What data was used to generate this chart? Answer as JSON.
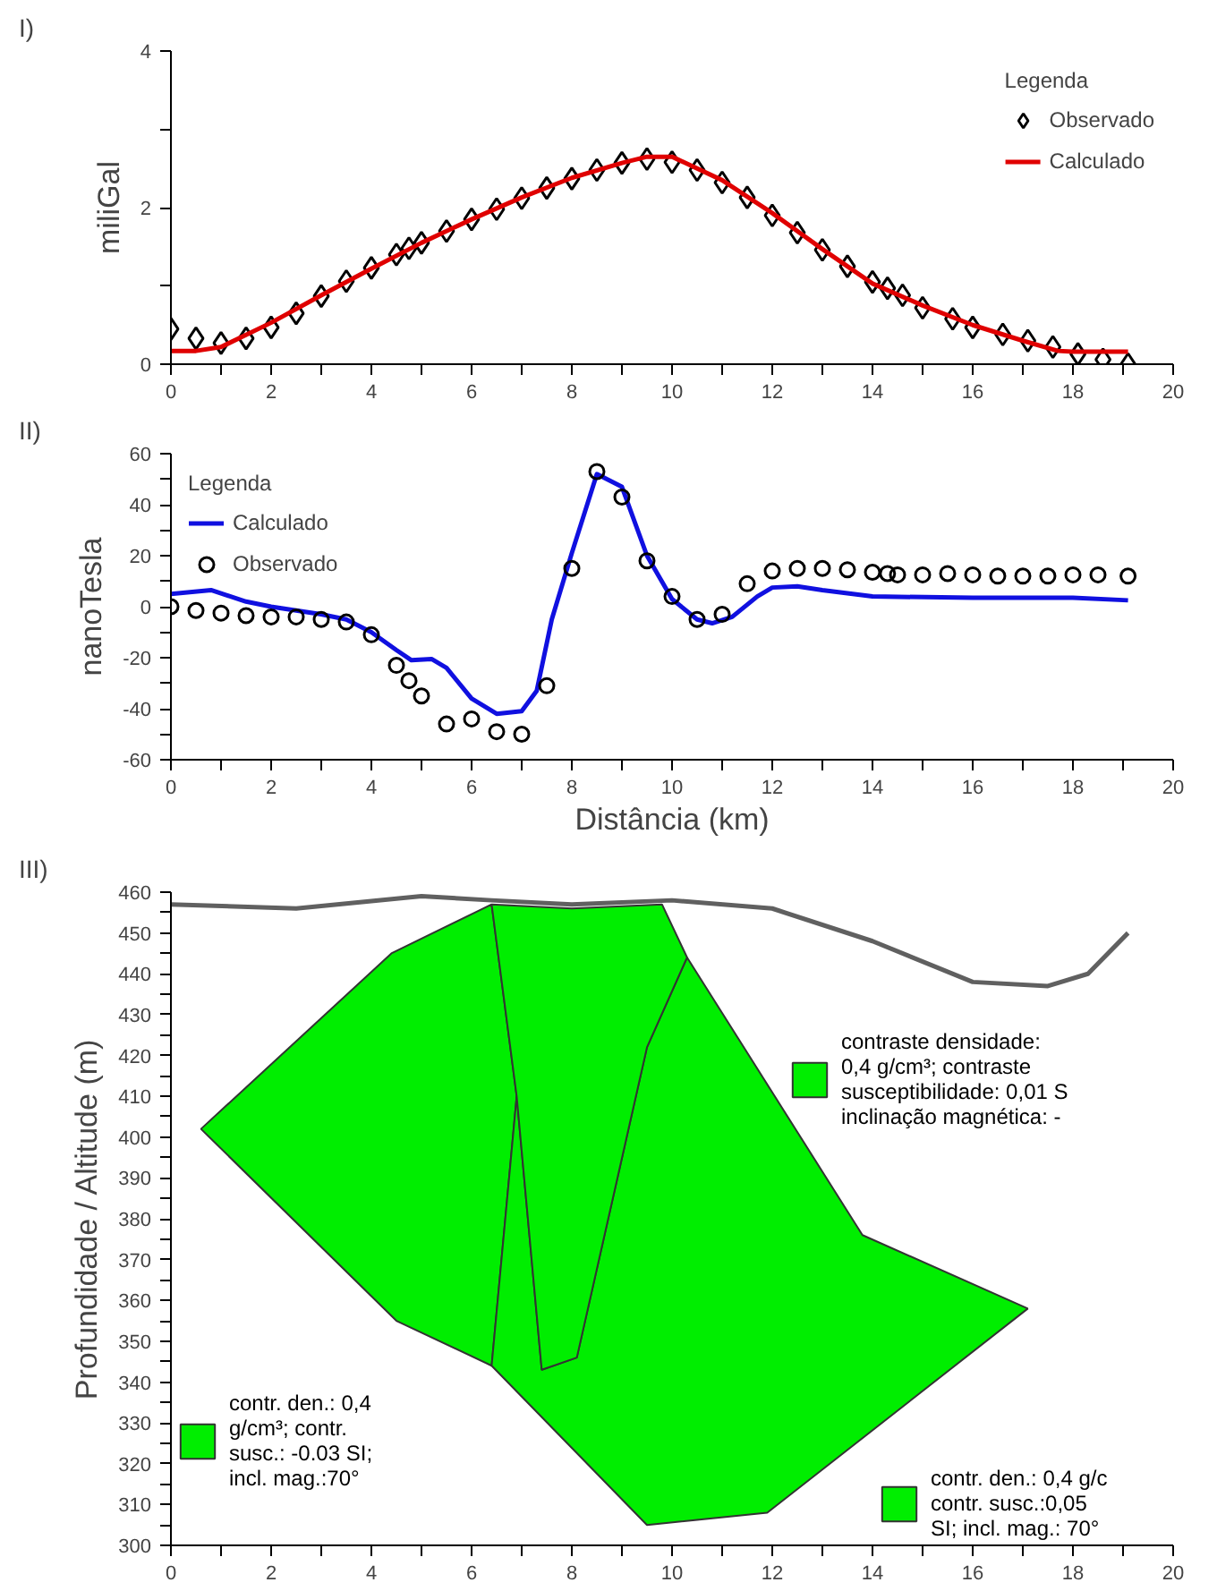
{
  "chart_data": [
    {
      "type": "line",
      "title": "I)",
      "ylabel": "miliGal",
      "legend_title": "Legenda",
      "legend": "top right",
      "xlim": [
        0,
        20
      ],
      "xticks": [
        0,
        {
          "value": 1,
          "label": null
        },
        2,
        {
          "value": 3,
          "label": null
        },
        4,
        {
          "value": 5,
          "label": null
        },
        6,
        {
          "value": 7,
          "label": null
        },
        8,
        {
          "value": 9,
          "label": null
        },
        10,
        {
          "value": 11,
          "label": null
        },
        12,
        {
          "value": 13,
          "label": null
        },
        14,
        {
          "value": 15,
          "label": null
        },
        16,
        {
          "value": 17,
          "label": null
        },
        18,
        {
          "value": 19,
          "label": null
        },
        20
      ],
      "ylim": [
        0,
        4
      ],
      "yticks": [
        0,
        {
          "value": 1,
          "label": null
        },
        2,
        {
          "value": 3,
          "label": null
        },
        4
      ],
      "series": [
        {
          "name": "Observado",
          "type": "scatter",
          "marker": "diamond",
          "color": "#000000",
          "x": [
            0,
            0.5,
            1,
            1.5,
            2,
            2.5,
            3,
            3.5,
            4,
            4.5,
            4.75,
            5,
            5.5,
            6,
            6.5,
            7,
            7.5,
            8,
            8.5,
            9,
            9.5,
            10,
            10.5,
            11,
            11.5,
            12,
            12.5,
            13,
            13.5,
            14,
            14.3,
            14.6,
            15,
            15.6,
            16,
            16.6,
            17.1,
            17.6,
            18.1,
            18.6,
            19.1
          ],
          "values": [
            0.45,
            0.33,
            0.27,
            0.33,
            0.47,
            0.65,
            0.87,
            1.06,
            1.23,
            1.4,
            1.48,
            1.55,
            1.7,
            1.85,
            1.98,
            2.12,
            2.25,
            2.37,
            2.48,
            2.57,
            2.62,
            2.58,
            2.48,
            2.32,
            2.13,
            1.9,
            1.68,
            1.46,
            1.25,
            1.05,
            0.97,
            0.88,
            0.72,
            0.58,
            0.47,
            0.38,
            0.3,
            0.22,
            0.13,
            0.06,
            0.0
          ]
        },
        {
          "name": "Calculado",
          "color": "#e00000",
          "x": [
            0,
            0.5,
            1,
            2,
            3,
            4,
            5,
            6,
            7,
            8,
            9,
            9.5,
            10,
            11,
            12,
            13,
            14,
            15,
            16,
            17,
            17.7,
            18,
            19.1
          ],
          "values": [
            0.17,
            0.17,
            0.22,
            0.53,
            0.88,
            1.22,
            1.55,
            1.85,
            2.13,
            2.38,
            2.57,
            2.65,
            2.65,
            2.35,
            1.93,
            1.47,
            1.03,
            0.75,
            0.5,
            0.3,
            0.17,
            0.16,
            0.16
          ]
        }
      ]
    },
    {
      "type": "line",
      "title": "II)",
      "ylabel": "nanoTesla",
      "xlabel": "Distância (km)",
      "legend_title": "Legenda",
      "legend": "top left",
      "xlim": [
        0,
        20
      ],
      "xticks": [
        0,
        {
          "value": 1,
          "label": null
        },
        2,
        {
          "value": 3,
          "label": null
        },
        4,
        {
          "value": 5,
          "label": null
        },
        6,
        {
          "value": 7,
          "label": null
        },
        8,
        {
          "value": 9,
          "label": null
        },
        10,
        {
          "value": 11,
          "label": null
        },
        12,
        {
          "value": 13,
          "label": null
        },
        14,
        {
          "value": 15,
          "label": null
        },
        16,
        {
          "value": 17,
          "label": null
        },
        18,
        {
          "value": 19,
          "label": null
        },
        20
      ],
      "ylim": [
        -60,
        60
      ],
      "yticks": [
        {
          "value": -60,
          "label": "-60"
        },
        {
          "value": -50,
          "label": null
        },
        {
          "value": -40,
          "label": "-40"
        },
        {
          "value": -30,
          "label": null
        },
        {
          "value": -20,
          "label": "-20"
        },
        {
          "value": -10,
          "label": null
        },
        0,
        {
          "value": 10,
          "label": null
        },
        20,
        {
          "value": 30,
          "label": null
        },
        40,
        {
          "value": 50,
          "label": null
        },
        60
      ],
      "series": [
        {
          "name": "Calculado",
          "color": "#1010e0",
          "x": [
            0,
            0.8,
            1.5,
            2,
            3,
            3.5,
            4,
            4.5,
            4.8,
            5.2,
            5.5,
            6,
            6.5,
            7,
            7.3,
            7.6,
            8,
            8.5,
            9,
            9.5,
            10,
            10.5,
            10.8,
            11.2,
            11.7,
            12,
            12.5,
            13,
            14,
            16,
            18,
            19.1
          ],
          "values": [
            5,
            6.5,
            2,
            0,
            -3,
            -5,
            -10,
            -17,
            -21,
            -20.5,
            -24,
            -36,
            -42,
            -41,
            -33,
            -5,
            21,
            52,
            47,
            20,
            3,
            -5,
            -6.5,
            -4,
            4,
            7.5,
            8,
            6.5,
            4,
            3.5,
            3.5,
            2.5
          ]
        },
        {
          "name": "Observado",
          "type": "scatter",
          "marker": "circle",
          "color": "#000000",
          "x": [
            0,
            0.5,
            1,
            1.5,
            2,
            2.5,
            3,
            3.5,
            4,
            4.5,
            4.75,
            5,
            5.5,
            6,
            6.5,
            7,
            7.5,
            8,
            8.5,
            9,
            9.5,
            10,
            10.5,
            11,
            11.5,
            12,
            12.5,
            13,
            13.5,
            14,
            14.3,
            14.5,
            15,
            15.5,
            16,
            16.5,
            17,
            17.5,
            18,
            18.5,
            19.1
          ],
          "values": [
            0,
            -1.5,
            -2.5,
            -3.5,
            -4,
            -4,
            -5,
            -6,
            -11,
            -23,
            -29,
            -35,
            -46,
            -44,
            -49,
            -50,
            -31,
            15,
            53,
            43,
            18,
            4,
            -5,
            -3,
            9,
            14,
            15,
            15,
            14.5,
            13.5,
            13,
            12.5,
            12.5,
            13,
            12.5,
            12,
            12,
            12,
            12.5,
            12.5,
            12
          ]
        }
      ]
    },
    {
      "type": "area",
      "title": "III)",
      "ylabel": "Profundidade / Altitude (m)",
      "legend": "right",
      "xlim": [
        0,
        20
      ],
      "xticks": [
        0,
        {
          "value": 1,
          "label": null
        },
        2,
        {
          "value": 3,
          "label": null
        },
        4,
        {
          "value": 5,
          "label": null
        },
        6,
        {
          "value": 7,
          "label": null
        },
        8,
        {
          "value": 9,
          "label": null
        },
        10,
        {
          "value": 11,
          "label": null
        },
        12,
        {
          "value": 13,
          "label": null
        },
        14,
        {
          "value": 15,
          "label": null
        },
        16,
        {
          "value": 17,
          "label": null
        },
        18,
        {
          "value": 19,
          "label": null
        },
        20
      ],
      "ylim": [
        300,
        460
      ],
      "yticks": [
        300,
        {
          "value": 305,
          "label": null
        },
        310,
        {
          "value": 315,
          "label": null
        },
        320,
        {
          "value": 325,
          "label": null
        },
        330,
        {
          "value": 335,
          "label": null
        },
        340,
        {
          "value": 345,
          "label": null
        },
        350,
        {
          "value": 355,
          "label": null
        },
        360,
        {
          "value": 365,
          "label": null
        },
        370,
        {
          "value": 375,
          "label": null
        },
        380,
        {
          "value": 385,
          "label": null
        },
        390,
        {
          "value": 395,
          "label": null
        },
        400,
        {
          "value": 405,
          "label": null
        },
        410,
        {
          "value": 415,
          "label": null
        },
        420,
        {
          "value": 425,
          "label": null
        },
        430,
        {
          "value": 435,
          "label": null
        },
        440,
        {
          "value": 445,
          "label": null
        },
        450,
        {
          "value": 455,
          "label": null
        },
        460
      ],
      "series": [
        {
          "name": "contr. den.: 0,4\ng/cm³; contr.\nsusc.: -0.03 SI;\nincl. mag.:70°",
          "color": "#00ee00",
          "x": [
            0.6,
            4.4,
            6.4,
            6.9,
            6.4,
            4.5,
            0.6
          ],
          "values": [
            402,
            445,
            457,
            410,
            344,
            355,
            402
          ]
        },
        {
          "name": "contraste densidade:\n0,4 g/cm³; contraste\nsusceptibilidade: 0,01 S\ninclinação magnética: -",
          "color": "#00ee00",
          "x": [
            6.9,
            6.4,
            9.5,
            11.9,
            17.1,
            13.8,
            10.3,
            9.5,
            8.1,
            7.4,
            6.9
          ],
          "values": [
            410,
            344,
            305,
            308,
            358,
            376,
            444,
            422,
            346,
            343,
            410
          ]
        },
        {
          "name": "contr. den.: 0,4 g/c\ncontr. susc.:0,05\nSI; incl. mag.: 70°",
          "color": "#00ee00",
          "x": [
            6.4,
            8,
            9.8,
            10.3,
            9.5,
            8.1,
            7.4,
            6.9,
            6.4
          ],
          "values": [
            457,
            456,
            457,
            444,
            422,
            346,
            343,
            410,
            457
          ]
        },
        {
          "type": "line",
          "color": "#606060",
          "x": [
            0,
            2.5,
            5,
            6.4,
            8,
            10,
            12,
            14,
            16,
            17.5,
            18.3,
            19.1
          ],
          "values": [
            457,
            456,
            459,
            458,
            457,
            458,
            456,
            448,
            438,
            437,
            440,
            450
          ]
        }
      ]
    }
  ]
}
